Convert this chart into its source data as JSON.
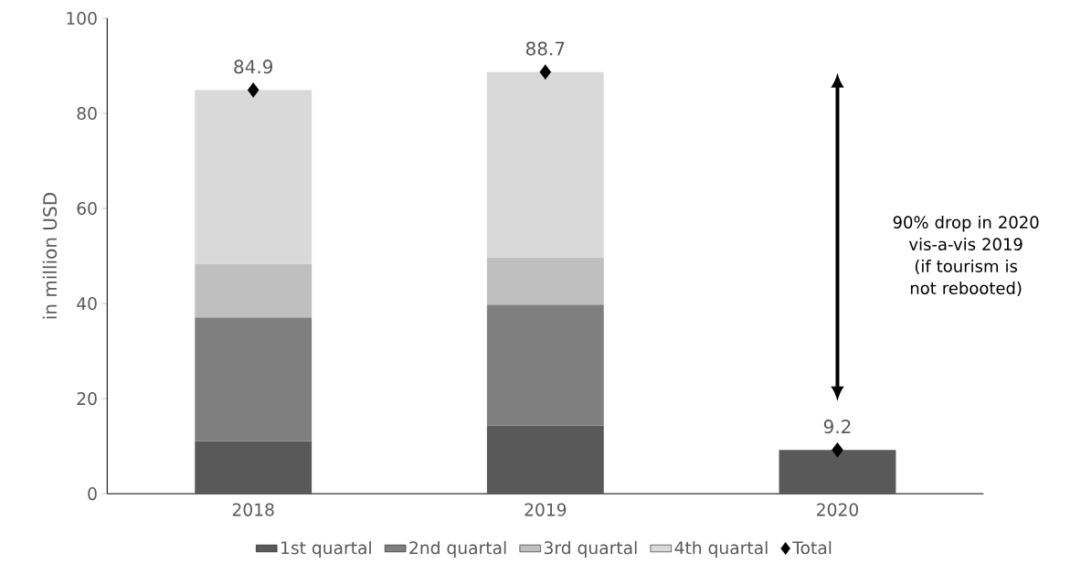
{
  "chart_data": {
    "type": "bar",
    "stacked": true,
    "ylabel": "in million USD",
    "categories": [
      "2018",
      "2019",
      "2020"
    ],
    "series": [
      {
        "name": "1st quartal",
        "color": "#595959",
        "values": [
          11.1,
          14.3,
          9.2
        ]
      },
      {
        "name": "2nd quartal",
        "color": "#7f7f7f",
        "values": [
          26.0,
          25.5,
          null
        ]
      },
      {
        "name": "3rd quartal",
        "color": "#bfbfbf",
        "values": [
          11.3,
          9.9,
          null
        ]
      },
      {
        "name": "4th quartal",
        "color": "#d9d9d9",
        "values": [
          36.5,
          39.0,
          null
        ]
      },
      {
        "name": "Total",
        "type": "scatter",
        "marker": "diamond",
        "color": "#000000",
        "values": [
          84.9,
          88.7,
          9.2
        ],
        "value_labels": [
          "84.9",
          "88.7",
          "9.2"
        ]
      }
    ],
    "ylim": [
      0,
      100
    ],
    "yticks": [
      0,
      20,
      40,
      60,
      80,
      100
    ],
    "grid": false,
    "legend": "bottom",
    "annotations": [
      "90% drop in 2020 vis-a-vis 2019 (if tourism is not rebooted)"
    ]
  }
}
